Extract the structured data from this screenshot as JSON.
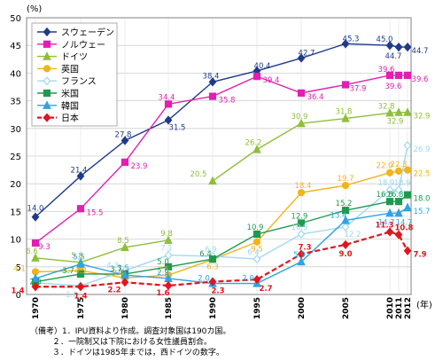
{
  "chart_data": {
    "type": "line",
    "y_unit": "(%)",
    "x_unit": "(年)",
    "x": [
      1970,
      1975,
      1980,
      1985,
      1990,
      1995,
      2000,
      2005,
      2010,
      2011,
      2012
    ],
    "ylim": [
      0,
      50
    ],
    "yticks": [
      0,
      5,
      10,
      15,
      20,
      25,
      30,
      35,
      40,
      45,
      50
    ],
    "grid": true,
    "legend_position": "top-left",
    "series": [
      {
        "name": "スウェーデン",
        "color": "#1f3a8a",
        "marker": "diamond",
        "values": [
          14.0,
          21.4,
          27.8,
          31.5,
          38.4,
          40.4,
          42.7,
          45.3,
          45.0,
          44.7,
          44.7
        ],
        "labels": [
          "14.0",
          "21.4",
          "27.8",
          "31.5",
          "38.4",
          "40.4",
          "42.7",
          "45.3",
          "45.0",
          "44.7",
          "44.7"
        ]
      },
      {
        "name": "ノルウェー",
        "color": "#e21fb0",
        "marker": "square",
        "values": [
          9.3,
          15.5,
          23.9,
          34.4,
          35.8,
          39.4,
          36.4,
          37.9,
          39.6,
          39.6,
          39.6
        ],
        "labels": [
          "9.3",
          "15.5",
          "23.9",
          "34.4",
          "35.8",
          "39.4",
          "36.4",
          "37.9",
          "39.6",
          "39.6",
          "39.6"
        ]
      },
      {
        "name": "ドイツ",
        "color": "#8dbf3a",
        "marker": "triangle",
        "values": [
          6.6,
          5.8,
          8.5,
          9.8,
          20.5,
          26.2,
          30.9,
          31.8,
          32.8,
          32.9,
          32.9
        ],
        "labels": [
          "6.6",
          "5.8",
          "8.5",
          "9.8",
          "20.5",
          "26.2",
          "30.9",
          "31.8",
          "32.8",
          "32.9",
          "32.9"
        ],
        "break_after_index": 3
      },
      {
        "name": "英国",
        "color": "#f2b31b",
        "marker": "circle",
        "values": [
          4.1,
          4.3,
          3.0,
          3.5,
          6.3,
          9.5,
          18.4,
          19.7,
          22.0,
          22.3,
          22.5
        ],
        "labels": [
          "4.1",
          "4.3",
          "3.0",
          "3.5",
          "6.3",
          "9.5",
          "18.4",
          "19.7",
          "22.0",
          "22.3",
          "22.5"
        ]
      },
      {
        "name": "フランス",
        "color": "#9fd8ef",
        "marker": "diamond-open",
        "values": [
          2.1,
          1.6,
          4.3,
          7.1,
          6.9,
          6.4,
          10.9,
          12.2,
          18.9,
          18.9,
          26.9
        ],
        "labels": [
          "",
          "1.6",
          "4.3",
          "7.1",
          "6.9",
          "6.4",
          "10.9",
          "12.2",
          "18.9",
          "18.9",
          "26.9"
        ]
      },
      {
        "name": "米国",
        "color": "#1e9a50",
        "marker": "square",
        "values": [
          2.3,
          3.7,
          3.7,
          5.0,
          6.4,
          10.9,
          12.9,
          15.2,
          16.8,
          16.8,
          18.0
        ],
        "labels": [
          "2.3",
          "3.7",
          "3.7",
          "5.0",
          "6.4",
          "10.9",
          "12.9",
          "15.2",
          "16.8",
          "16.8",
          "18.0"
        ]
      },
      {
        "name": "韓国",
        "color": "#2ea3e6",
        "marker": "triangle",
        "values": [
          2.9,
          5.5,
          3.5,
          2.9,
          2.0,
          2.0,
          5.9,
          13.4,
          14.7,
          14.7,
          15.7
        ],
        "labels": [
          "",
          "5.5",
          "3.5",
          "2.9",
          "2.0",
          "2.0",
          "5.9",
          "13.4",
          "14.7",
          "14.7",
          "15.7"
        ]
      },
      {
        "name": "日本",
        "color": "#e0161f",
        "marker": "diamond",
        "dashed": true,
        "values": [
          1.4,
          1.4,
          2.2,
          1.6,
          2.3,
          2.7,
          7.3,
          9.0,
          11.3,
          10.8,
          7.9
        ],
        "labels": [
          "1.4",
          "1.4",
          "2.2",
          "1.6",
          "2.3",
          "2.7",
          "7.3",
          "9.0",
          "11.3",
          "10.8",
          "7.9"
        ]
      }
    ]
  },
  "notes": {
    "line1": "（備考）1．IPU資料より作成。調査対象国は190カ国。",
    "line2": "２．一院制又は下院における女性議員割合。",
    "line3": "３．ドイツは1985年までは，西ドイツの数字。"
  }
}
